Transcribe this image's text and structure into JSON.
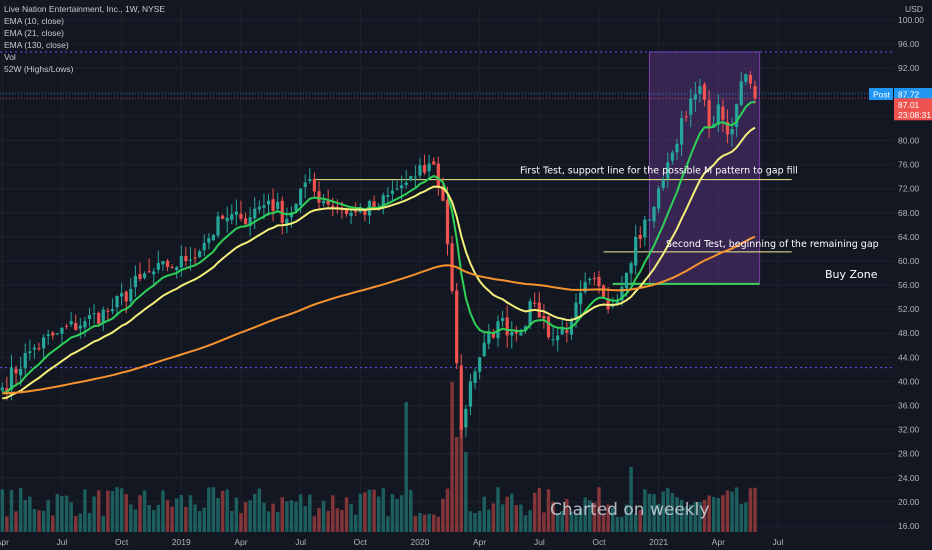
{
  "legend": {
    "title": "Live Nation Entertainment, Inc., 1W, NYSE",
    "ema10": "EMA (10, close)",
    "ema21": "EMA (21, close)",
    "ema130": "EMA (130, close)",
    "vol": "Vol",
    "w52": "52W (Highs/Lows)"
  },
  "axis": {
    "currency": "USD"
  },
  "badges": {
    "post_label": "Post",
    "post_value": "87.72",
    "last_value": "87.01",
    "countdown": "23:08:31"
  },
  "annotations": {
    "first_test": "First Test, support line for the possible M pattern to gap fill",
    "second_test": "Second Test, beginning of the remaining gap",
    "buy_zone": "Buy Zone",
    "watermark": "Charted on weekly"
  },
  "colors": {
    "background": "#131722",
    "up_candle": "#26a69a",
    "down_candle": "#ef5350",
    "ema10": "#2ed158",
    "ema21": "#f5f07a",
    "ema130": "#f7932e",
    "annotation_line": "#f2ee8c",
    "buy_zone_line": "#3fd15c",
    "range_box": "#7b3fa8",
    "w52_line": "#5b5bff",
    "post_badge": "#2196f3",
    "last_badge": "#ef5350"
  },
  "chart_data": {
    "type": "candlestick",
    "timeframe": "1W",
    "y_axis": {
      "ticks": [
        16,
        20,
        24,
        28,
        32,
        36,
        40,
        44,
        48,
        52,
        56,
        60,
        64,
        68,
        72,
        76,
        80,
        84,
        88,
        92,
        96,
        100
      ],
      "range": [
        15,
        102
      ]
    },
    "x_axis": {
      "ticks": [
        {
          "label": "Apr",
          "week": 0
        },
        {
          "label": "Jul",
          "week": 13
        },
        {
          "label": "Oct",
          "week": 26
        },
        {
          "label": "2019",
          "week": 39
        },
        {
          "label": "Apr",
          "week": 52
        },
        {
          "label": "Jul",
          "week": 65
        },
        {
          "label": "Oct",
          "week": 78
        },
        {
          "label": "2020",
          "week": 91
        },
        {
          "label": "Apr",
          "week": 104
        },
        {
          "label": "Jul",
          "week": 117
        },
        {
          "label": "Oct",
          "week": 130
        },
        {
          "label": "2021",
          "week": 143
        },
        {
          "label": "Apr",
          "week": 156
        },
        {
          "label": "Jul",
          "week": 169
        }
      ],
      "weeks_total": 195
    },
    "closes_anchor": [
      [
        0,
        39
      ],
      [
        6,
        45
      ],
      [
        12,
        48
      ],
      [
        18,
        50
      ],
      [
        24,
        52
      ],
      [
        30,
        57
      ],
      [
        36,
        59
      ],
      [
        40,
        60
      ],
      [
        44,
        63
      ],
      [
        48,
        67
      ],
      [
        52,
        67
      ],
      [
        58,
        70
      ],
      [
        62,
        67
      ],
      [
        66,
        73
      ],
      [
        70,
        70
      ],
      [
        76,
        68
      ],
      [
        82,
        69
      ],
      [
        86,
        72
      ],
      [
        90,
        74
      ],
      [
        94,
        76
      ],
      [
        96,
        70
      ],
      [
        98,
        55
      ],
      [
        100,
        32
      ],
      [
        102,
        40
      ],
      [
        104,
        44
      ],
      [
        108,
        50
      ],
      [
        112,
        48
      ],
      [
        116,
        53
      ],
      [
        120,
        47
      ],
      [
        124,
        50
      ],
      [
        128,
        57
      ],
      [
        132,
        52
      ],
      [
        136,
        58
      ],
      [
        138,
        64
      ],
      [
        142,
        69
      ],
      [
        146,
        78
      ],
      [
        150,
        87
      ],
      [
        152,
        89
      ],
      [
        154,
        82
      ],
      [
        156,
        86
      ],
      [
        158,
        81
      ],
      [
        160,
        86
      ],
      [
        162,
        91
      ],
      [
        164,
        87
      ]
    ],
    "ema_start": {
      "ema10": 38,
      "ema21": 37,
      "ema130": 38
    },
    "volume_scale_max": 30,
    "volume_spikes": [
      [
        88,
        26
      ],
      [
        98,
        30
      ],
      [
        99,
        19
      ],
      [
        100,
        22
      ],
      [
        101,
        16
      ],
      [
        137,
        13
      ]
    ],
    "levels": {
      "first_test": 73.5,
      "second_test": 61.5,
      "buy_zone": 56.2,
      "w52_high": 94.7,
      "w52_low": 42.3,
      "post_price": 87.72,
      "last_price": 87.01
    },
    "first_test_start_week": 68,
    "second_test_start_week": 131,
    "buy_zone_start_week": 133,
    "range_box": {
      "start_week": 141,
      "end_week": 165,
      "top": 94.7,
      "bottom": 56.2
    }
  }
}
